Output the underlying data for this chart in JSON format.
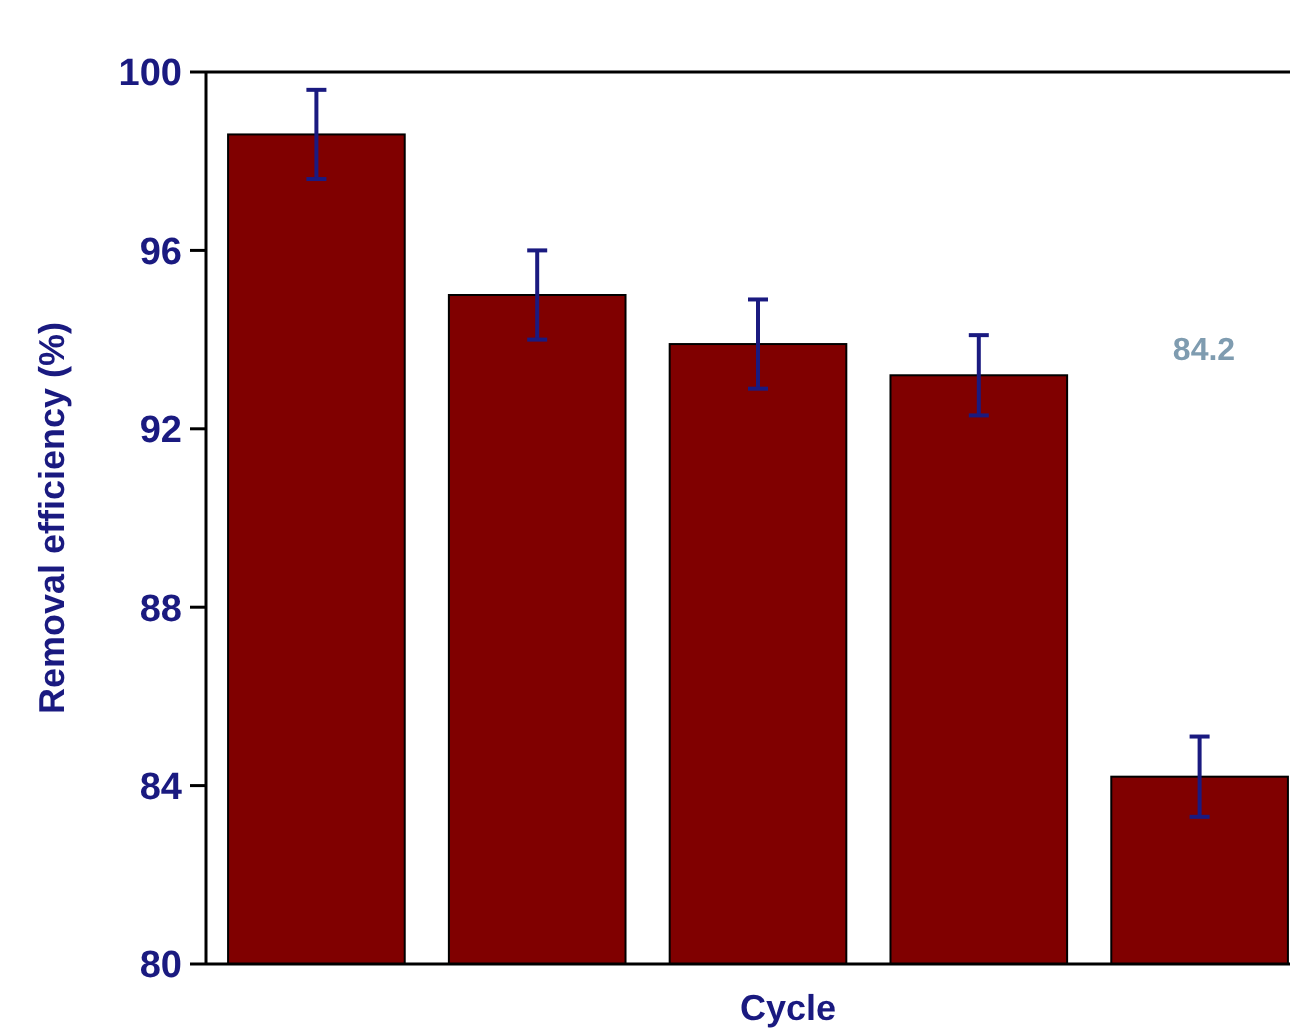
{
  "chart_data": {
    "type": "bar",
    "ylabel": "Removal efficiency (%)",
    "xlabel": "Cycle",
    "categories": [
      null,
      null,
      null,
      null,
      null
    ],
    "values": [
      98.6,
      95.0,
      93.9,
      93.2,
      84.2
    ],
    "errors": [
      1.0,
      1.0,
      1.0,
      0.9,
      0.9
    ],
    "color": "#800000",
    "ylim": [
      80,
      100
    ],
    "yticks": [
      80,
      84,
      88,
      92,
      96,
      100
    ],
    "annotations": [
      "84.2"
    ],
    "grid": false
  }
}
